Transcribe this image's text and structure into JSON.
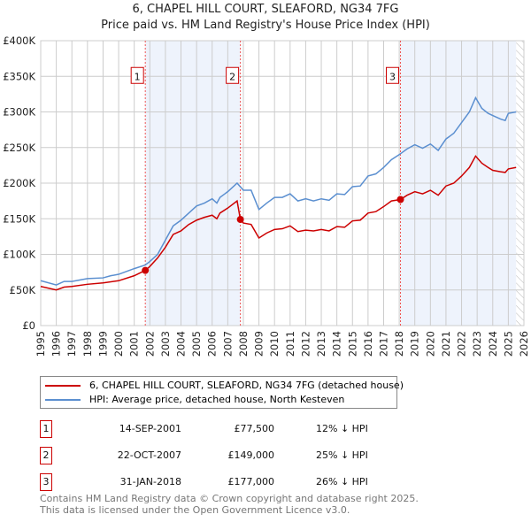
{
  "title": "6, CHAPEL HILL COURT, SLEAFORD, NG34 7FG",
  "subtitle": "Price paid vs. HM Land Registry's House Price Index (HPI)",
  "chart_data": {
    "type": "line",
    "ylim": [
      0,
      400000
    ],
    "xlim": [
      1995,
      2026
    ],
    "yticks": [
      0,
      50000,
      100000,
      150000,
      200000,
      250000,
      300000,
      350000,
      400000
    ],
    "ytick_labels": [
      "£0",
      "£50K",
      "£100K",
      "£150K",
      "£200K",
      "£250K",
      "£300K",
      "£350K",
      "£400K"
    ],
    "xticks": [
      1995,
      1996,
      1997,
      1998,
      1999,
      2000,
      2001,
      2002,
      2003,
      2004,
      2005,
      2006,
      2007,
      2008,
      2009,
      2010,
      2011,
      2012,
      2013,
      2014,
      2015,
      2016,
      2017,
      2018,
      2019,
      2020,
      2021,
      2022,
      2023,
      2024,
      2025,
      2026
    ],
    "grid": true,
    "series": [
      {
        "name": "6, CHAPEL HILL COURT, SLEAFORD, NG34 7FG (detached house)",
        "color": "#cc0000",
        "x": [
          1995,
          1996,
          1996.5,
          1997,
          1998,
          1999,
          2000,
          2001,
          2001.71,
          2002,
          2002.5,
          2003,
          2003.5,
          2004,
          2004.5,
          2005,
          2005.5,
          2006,
          2006.3,
          2006.5,
          2007,
          2007.6,
          2007.81,
          2008,
          2008.5,
          2009,
          2009.5,
          2010,
          2010.5,
          2011,
          2011.5,
          2012,
          2012.5,
          2013,
          2013.5,
          2014,
          2014.5,
          2015,
          2015.5,
          2016,
          2016.5,
          2017,
          2017.5,
          2018.08,
          2018.5,
          2019,
          2019.5,
          2020,
          2020.5,
          2021,
          2021.5,
          2022,
          2022.5,
          2022.9,
          2023.3,
          2023.7,
          2024,
          2024.5,
          2024.8,
          2025,
          2025.5
        ],
        "y": [
          55000,
          50000,
          54000,
          55000,
          58000,
          60000,
          63000,
          70000,
          77500,
          83000,
          95000,
          110000,
          128000,
          133000,
          142000,
          148000,
          152000,
          155000,
          150000,
          158000,
          165000,
          175000,
          149000,
          144000,
          142000,
          123000,
          130000,
          135000,
          136000,
          140000,
          132000,
          134000,
          133000,
          135000,
          133000,
          139000,
          138000,
          147000,
          148000,
          158000,
          160000,
          167000,
          175000,
          177000,
          183000,
          188000,
          185000,
          190000,
          183000,
          196000,
          200000,
          210000,
          222000,
          238000,
          228000,
          222000,
          218000,
          216000,
          215000,
          220000,
          222000
        ]
      },
      {
        "name": "HPI: Average price, detached house, North Kesteven",
        "color": "#5b8fd0",
        "x": [
          1995,
          1996,
          1996.5,
          1997,
          1998,
          1999,
          1999.5,
          2000,
          2001,
          2001.7,
          2002,
          2002.5,
          2003,
          2003.5,
          2004,
          2004.5,
          2005,
          2005.5,
          2006,
          2006.3,
          2006.5,
          2007,
          2007.6,
          2008,
          2008.5,
          2009,
          2009.5,
          2010,
          2010.5,
          2011,
          2011.5,
          2012,
          2012.5,
          2013,
          2013.5,
          2014,
          2014.5,
          2015,
          2015.5,
          2016,
          2016.5,
          2017,
          2017.5,
          2018,
          2018.5,
          2019,
          2019.5,
          2020,
          2020.5,
          2021,
          2021.5,
          2022,
          2022.5,
          2022.9,
          2023.3,
          2023.7,
          2024,
          2024.5,
          2024.8,
          2025,
          2025.5
        ],
        "y": [
          63000,
          57000,
          62000,
          62000,
          66000,
          67000,
          70000,
          72000,
          80000,
          85000,
          90000,
          100000,
          120000,
          140000,
          148000,
          158000,
          168000,
          172000,
          178000,
          172000,
          180000,
          188000,
          200000,
          190000,
          190000,
          163000,
          172000,
          180000,
          180000,
          185000,
          175000,
          178000,
          175000,
          178000,
          176000,
          185000,
          184000,
          195000,
          196000,
          210000,
          213000,
          222000,
          233000,
          240000,
          248000,
          254000,
          249000,
          255000,
          246000,
          262000,
          270000,
          285000,
          300000,
          320000,
          305000,
          298000,
          295000,
          290000,
          288000,
          298000,
          300000
        ]
      }
    ],
    "sales": [
      {
        "label": "1",
        "x": 2001.71,
        "y": 77500,
        "date": "14-SEP-2001",
        "price": "£77,500",
        "hpi": "12% ↓ HPI"
      },
      {
        "label": "2",
        "x": 2007.81,
        "y": 149000,
        "date": "22-OCT-2007",
        "price": "£149,000",
        "hpi": "25% ↓ HPI"
      },
      {
        "label": "3",
        "x": 2018.08,
        "y": 177000,
        "date": "31-JAN-2018",
        "price": "£177,000",
        "hpi": "26% ↓ HPI"
      }
    ],
    "shaded": [
      [
        2001.71,
        2007.81
      ],
      [
        2018.08,
        2025.5
      ]
    ],
    "hatched_from": 2025.5
  },
  "footer": [
    "Contains HM Land Registry data © Crown copyright and database right 2025.",
    "This data is licensed under the Open Government Licence v3.0."
  ]
}
